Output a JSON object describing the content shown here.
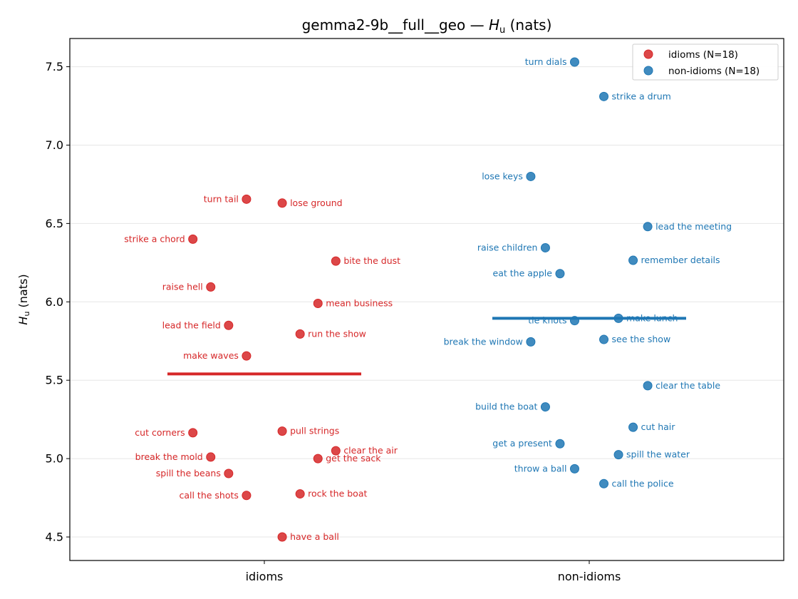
{
  "chart_data": {
    "type": "scatter",
    "title_main": "gemma2-9b__full__geo — ",
    "title_var": "H",
    "title_sub": "u",
    "title_unit": " (nats)",
    "ylabel_var": "H",
    "ylabel_sub": "u",
    "ylabel_unit": " (nats)",
    "categories": [
      "idioms",
      "non-idioms"
    ],
    "ylim": [
      4.35,
      7.68
    ],
    "yticks": [
      4.5,
      5.0,
      5.5,
      6.0,
      6.5,
      7.0,
      7.5
    ],
    "grid": "y",
    "legend_position": "top-right",
    "series": [
      {
        "name": "idioms (N=18)",
        "category": "idioms",
        "color": "#d62728",
        "mean": 5.54,
        "points": [
          {
            "label": "turn tail",
            "y": 6.655,
            "x": -0.055
          },
          {
            "label": "lose ground",
            "y": 6.63,
            "x": 0.055
          },
          {
            "label": "strike a chord",
            "y": 6.4,
            "x": -0.22
          },
          {
            "label": "bite the dust",
            "y": 6.26,
            "x": 0.22
          },
          {
            "label": "raise hell",
            "y": 6.095,
            "x": -0.165
          },
          {
            "label": "mean business",
            "y": 5.99,
            "x": 0.165
          },
          {
            "label": "lead the field",
            "y": 5.85,
            "x": -0.11
          },
          {
            "label": "run the show",
            "y": 5.795,
            "x": 0.11
          },
          {
            "label": "make waves",
            "y": 5.655,
            "x": -0.055
          },
          {
            "label": "cut corners",
            "y": 5.165,
            "x": -0.22
          },
          {
            "label": "pull strings",
            "y": 5.175,
            "x": 0.055
          },
          {
            "label": "clear the air",
            "y": 5.05,
            "x": 0.22
          },
          {
            "label": "break the mold",
            "y": 5.01,
            "x": -0.165
          },
          {
            "label": "get the sack",
            "y": 5.0,
            "x": 0.165
          },
          {
            "label": "spill the beans",
            "y": 4.905,
            "x": -0.11
          },
          {
            "label": "call the shots",
            "y": 4.765,
            "x": -0.055
          },
          {
            "label": "rock the boat",
            "y": 4.775,
            "x": 0.11
          },
          {
            "label": "have a ball",
            "y": 4.5,
            "x": 0.055
          }
        ]
      },
      {
        "name": "non-idioms (N=18)",
        "category": "non-idioms",
        "color": "#1f77b4",
        "mean": 5.895,
        "points": [
          {
            "label": "turn dials",
            "y": 7.53,
            "x": -0.045
          },
          {
            "label": "strike a drum",
            "y": 7.31,
            "x": 0.045
          },
          {
            "label": "lose keys",
            "y": 6.8,
            "x": -0.18
          },
          {
            "label": "lead the meeting",
            "y": 6.48,
            "x": 0.18
          },
          {
            "label": "raise children",
            "y": 6.345,
            "x": -0.135
          },
          {
            "label": "remember details",
            "y": 6.265,
            "x": 0.135
          },
          {
            "label": "eat the apple",
            "y": 6.18,
            "x": -0.09
          },
          {
            "label": "tie knots",
            "y": 5.88,
            "x": -0.045
          },
          {
            "label": "make lunch",
            "y": 5.895,
            "x": 0.09
          },
          {
            "label": "break the window",
            "y": 5.745,
            "x": -0.18
          },
          {
            "label": "see the show",
            "y": 5.76,
            "x": 0.045
          },
          {
            "label": "clear the table",
            "y": 5.465,
            "x": 0.18
          },
          {
            "label": "build the boat",
            "y": 5.33,
            "x": -0.135
          },
          {
            "label": "cut hair",
            "y": 5.2,
            "x": 0.135
          },
          {
            "label": "get a present",
            "y": 5.095,
            "x": -0.09
          },
          {
            "label": "spill the water",
            "y": 5.025,
            "x": 0.09
          },
          {
            "label": "throw a ball",
            "y": 4.935,
            "x": -0.045
          },
          {
            "label": "call the police",
            "y": 4.84,
            "x": 0.045
          }
        ]
      }
    ]
  }
}
